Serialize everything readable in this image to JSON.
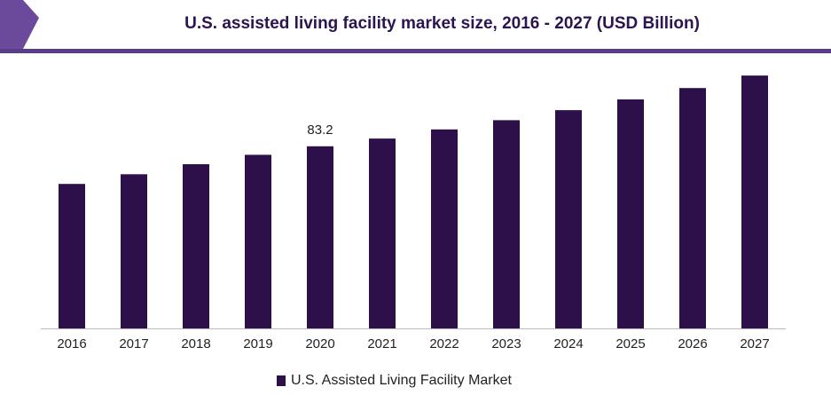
{
  "colors": {
    "bar": "#2d0f4a",
    "header_accent": "#5a3d8a",
    "corner": "#6b4a9c",
    "title": "#2c1450"
  },
  "chart_data": {
    "type": "bar",
    "title": "U.S. assisted living facility market size, 2016 - 2027 (USD Billion)",
    "xlabel": "",
    "ylabel": "",
    "categories": [
      "2016",
      "2017",
      "2018",
      "2019",
      "2020",
      "2021",
      "2022",
      "2023",
      "2024",
      "2025",
      "2026",
      "2027"
    ],
    "series": [
      {
        "name": "U.S. Assisted Living Facility Market",
        "values": [
          66.0,
          70.4,
          75.0,
          79.3,
          83.2,
          86.7,
          90.9,
          95.1,
          99.7,
          104.6,
          109.8,
          115.5
        ]
      }
    ],
    "data_labels": [
      {
        "category": "2020",
        "text": "83.2"
      }
    ],
    "ylim": [
      0,
      120
    ],
    "grid": false,
    "legend_position": "bottom"
  }
}
